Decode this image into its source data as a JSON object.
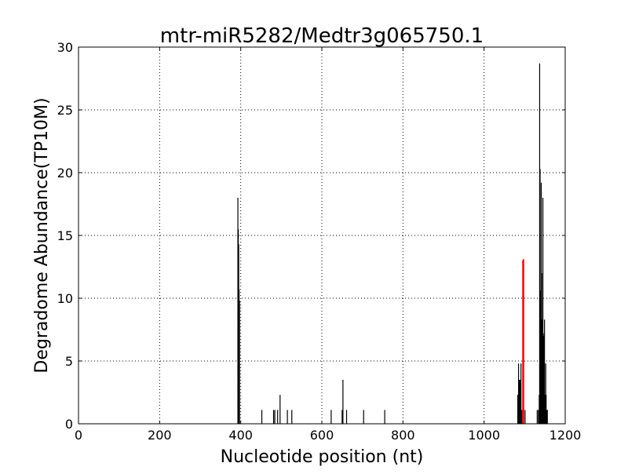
{
  "chart_data": {
    "type": "bar",
    "title": "mtr-miR5282/Medtr3g065750.1",
    "xlabel": "Nucleotide position (nt)",
    "ylabel": "Degradome Abundance(TP10M)",
    "xlim": [
      0,
      1200
    ],
    "ylim": [
      0,
      30
    ],
    "xticks": [
      0,
      200,
      400,
      600,
      800,
      1000,
      1200
    ],
    "yticks": [
      0,
      5,
      10,
      15,
      20,
      25,
      30
    ],
    "grid": true,
    "colors": {
      "background": "#ffffff",
      "axes": "#000000",
      "grid": "#000000",
      "bars": "#000000",
      "highlight": "#ff0000"
    },
    "series": [
      {
        "x": [
          393,
          394,
          395,
          396,
          397,
          452,
          481,
          484,
          491,
          497,
          515,
          526,
          623,
          650,
          652,
          661,
          703,
          755,
          1083,
          1085,
          1087,
          1089,
          1091,
          1093,
          1101,
          1131,
          1134,
          1136,
          1137,
          1138,
          1139,
          1140,
          1141,
          1142,
          1143,
          1144,
          1145,
          1146,
          1147,
          1148,
          1149,
          1150,
          1151,
          1152,
          1153,
          1154,
          1155,
          1156
        ],
        "values": [
          18,
          15.5,
          14.3,
          10.7,
          9.8,
          1.1,
          1.1,
          1.1,
          1.1,
          2.3,
          1.1,
          1.1,
          1.1,
          1.1,
          3.5,
          1.1,
          1.1,
          1.1,
          2.3,
          4.8,
          3.5,
          3.5,
          4.8,
          1.1,
          1.1,
          1.1,
          1.1,
          2.3,
          28.7,
          20.3,
          10.6,
          8.2,
          19.2,
          12,
          5.8,
          8.3,
          18,
          7.2,
          7,
          2.3,
          8.3,
          2.3,
          1.1,
          4.8,
          2.3,
          1.1,
          1.1,
          1.1
        ]
      },
      {
        "highlight": true,
        "x": [
          1096,
          1097
        ],
        "values": [
          13,
          13.1
        ]
      }
    ]
  }
}
